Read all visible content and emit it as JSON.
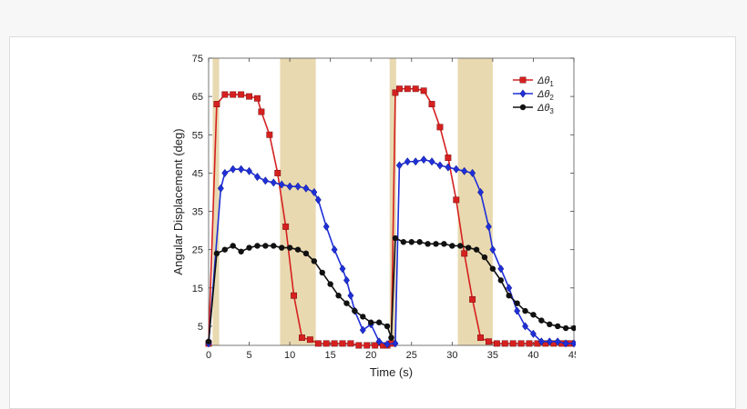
{
  "chart_data": {
    "type": "line",
    "title": "",
    "xlabel": "Time (s)",
    "ylabel": "Angular Displacement (deg)",
    "xlim": [
      0,
      45
    ],
    "ylim": [
      0,
      75
    ],
    "xticks": [
      0,
      5,
      10,
      15,
      20,
      25,
      30,
      35,
      40,
      45
    ],
    "yticks": [
      5,
      15,
      25,
      35,
      45,
      55,
      65,
      75
    ],
    "legend_position": "top-right",
    "shaded_intervals": [
      [
        0.5,
        1.3
      ],
      [
        8.8,
        13.2
      ],
      [
        22.3,
        23.1
      ],
      [
        30.7,
        35.0
      ]
    ],
    "shade_color": "#e8d9b0",
    "series": [
      {
        "name": "Δθ1",
        "label_main": "Δθ",
        "label_sub": "1",
        "color": "#d62020",
        "marker": "square",
        "x": [
          0,
          1.0,
          2.0,
          3.0,
          4.0,
          5.0,
          6.0,
          6.5,
          7.5,
          8.5,
          9.5,
          10.5,
          11.5,
          12.5,
          13.5,
          14.5,
          15.5,
          16.5,
          17.5,
          18.5,
          19.5,
          20.5,
          21.5,
          22.0,
          22.5,
          23.0,
          23.5,
          24.5,
          25.5,
          26.5,
          27.5,
          28.5,
          29.5,
          30.5,
          31.5,
          32.5,
          33.5,
          34.5,
          35.5,
          36.5,
          37.5,
          38.5,
          39.5,
          40.5,
          41.5,
          42.5,
          43.5,
          44.5
        ],
        "values": [
          0.5,
          63,
          65.5,
          65.5,
          65.5,
          65,
          64.5,
          61,
          55,
          45,
          31,
          13,
          2,
          1.5,
          0.5,
          0.5,
          0.5,
          0.5,
          0.5,
          0,
          0,
          0,
          0,
          0,
          0.5,
          66,
          67,
          67,
          67,
          66.5,
          63,
          57,
          49,
          38,
          24,
          12,
          2,
          1,
          0.5,
          0.5,
          0.5,
          0.5,
          0.5,
          0.5,
          0.5,
          0.5,
          0.5,
          0.5
        ]
      },
      {
        "name": "Δθ2",
        "label_main": "Δθ",
        "label_sub": "2",
        "color": "#1f2fd8",
        "marker": "diamond",
        "x": [
          0,
          1.5,
          2.0,
          3.0,
          4.0,
          5.0,
          6.0,
          7.0,
          8.0,
          9.0,
          10.0,
          11.0,
          12.0,
          13.0,
          13.5,
          14.5,
          15.5,
          16.5,
          17.0,
          17.5,
          18.0,
          19.0,
          20.0,
          21.0,
          22.0,
          23.0,
          23.5,
          24.5,
          25.5,
          26.5,
          27.5,
          28.5,
          29.5,
          30.5,
          31.5,
          32.5,
          33.5,
          34.5,
          35.0,
          36.0,
          37.0,
          38.0,
          39.0,
          40.0,
          41.0,
          42.0,
          43.0,
          44.0,
          45.0
        ],
        "values": [
          0.5,
          41,
          45,
          46,
          46,
          45.5,
          44,
          43,
          42.5,
          42,
          41.5,
          41.5,
          41,
          40,
          38,
          31,
          25,
          20,
          17,
          13,
          9,
          4,
          5.5,
          1,
          0.3,
          0.5,
          47,
          48,
          48,
          48.5,
          48,
          47,
          46.5,
          46,
          45.5,
          45,
          40,
          31,
          25,
          20,
          15,
          9,
          5,
          3,
          1,
          1,
          1,
          0.5,
          0.5
        ]
      },
      {
        "name": "Δθ3",
        "label_main": "Δθ",
        "label_sub": "3",
        "color": "#111111",
        "marker": "circle",
        "x": [
          0,
          1.0,
          2.0,
          3.0,
          4.0,
          5.0,
          6.0,
          7.0,
          8.0,
          9.0,
          10.0,
          11.0,
          12.0,
          13.0,
          14.0,
          15.0,
          16.0,
          17.0,
          18.0,
          19.0,
          20.0,
          21.0,
          22.0,
          22.5,
          23.0,
          24.0,
          25.0,
          26.0,
          27.0,
          28.0,
          29.0,
          30.0,
          31.0,
          32.0,
          33.0,
          34.0,
          35.0,
          36.0,
          37.0,
          38.0,
          39.0,
          40.0,
          41.0,
          42.0,
          43.0,
          44.0,
          45.0
        ],
        "values": [
          1,
          24,
          25,
          26,
          24.5,
          25.5,
          26,
          26,
          26,
          25.5,
          25.5,
          25,
          24,
          22,
          19,
          16,
          13,
          11,
          9,
          7.5,
          6,
          6,
          5,
          2,
          28,
          27,
          27,
          27,
          26.5,
          26.5,
          26.5,
          26,
          26,
          25.5,
          25,
          23,
          20,
          17,
          13,
          11,
          9,
          8,
          6.5,
          5.5,
          5,
          4.5,
          4.5
        ]
      }
    ]
  }
}
